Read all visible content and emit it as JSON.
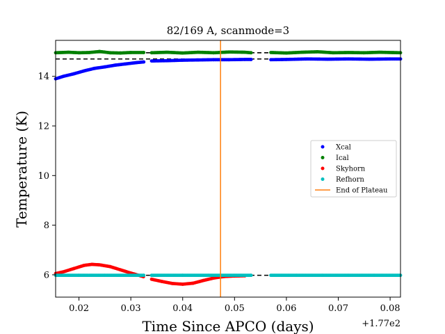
{
  "chart_data": {
    "type": "scatter",
    "title": "82/169 A, scanmode=3",
    "xlabel": "Time Since APCO (days)",
    "ylabel": "Temperature (K)",
    "x_offset_label": "+1.77e2",
    "xlim": [
      177.0155,
      177.082
    ],
    "ylim": [
      5.1,
      15.45
    ],
    "x_ticks": [
      {
        "value": 177.02,
        "label": "0.02"
      },
      {
        "value": 177.03,
        "label": "0.03"
      },
      {
        "value": 177.04,
        "label": "0.04"
      },
      {
        "value": 177.05,
        "label": "0.05"
      },
      {
        "value": 177.06,
        "label": "0.06"
      },
      {
        "value": 177.07,
        "label": "0.07"
      },
      {
        "value": 177.08,
        "label": "0.08"
      }
    ],
    "y_ticks": [
      {
        "value": 6,
        "label": "6"
      },
      {
        "value": 8,
        "label": "8"
      },
      {
        "value": 10,
        "label": "10"
      },
      {
        "value": 12,
        "label": "12"
      },
      {
        "value": 14,
        "label": "14"
      }
    ],
    "grid": false,
    "legend_position": "center-right",
    "reference_lines": [
      {
        "value": 14.95,
        "color": "#000000"
      },
      {
        "value": 14.7,
        "color": "#000000"
      },
      {
        "value": 5.98,
        "color": "#000000"
      }
    ],
    "vertical_line": {
      "name": "End of Plateau",
      "x": 177.0473,
      "color": "#ff7f0e"
    },
    "series": [
      {
        "name": "Xcal",
        "color": "#0000ff",
        "points": [
          [
            177.0155,
            13.9
          ],
          [
            177.017,
            14.0
          ],
          [
            177.019,
            14.1
          ],
          [
            177.021,
            14.22
          ],
          [
            177.023,
            14.32
          ],
          [
            177.025,
            14.38
          ],
          [
            177.027,
            14.45
          ],
          [
            177.029,
            14.5
          ],
          [
            177.031,
            14.55
          ],
          [
            177.0325,
            14.58
          ],
          [
            177.034,
            14.62
          ],
          [
            177.037,
            14.63
          ],
          [
            177.04,
            14.65
          ],
          [
            177.043,
            14.66
          ],
          [
            177.046,
            14.67
          ],
          [
            177.049,
            14.67
          ],
          [
            177.052,
            14.68
          ],
          [
            177.0532,
            14.68
          ],
          [
            177.057,
            14.67
          ],
          [
            177.06,
            14.68
          ],
          [
            177.064,
            14.7
          ],
          [
            177.068,
            14.69
          ],
          [
            177.072,
            14.7
          ],
          [
            177.076,
            14.69
          ],
          [
            177.08,
            14.7
          ],
          [
            177.082,
            14.7
          ]
        ]
      },
      {
        "name": "Ical",
        "color": "#008000",
        "points": [
          [
            177.0155,
            14.95
          ],
          [
            177.018,
            14.97
          ],
          [
            177.02,
            14.95
          ],
          [
            177.022,
            14.96
          ],
          [
            177.024,
            15.0
          ],
          [
            177.026,
            14.95
          ],
          [
            177.028,
            14.94
          ],
          [
            177.03,
            14.96
          ],
          [
            177.0325,
            14.96
          ],
          [
            177.034,
            14.95
          ],
          [
            177.037,
            14.97
          ],
          [
            177.04,
            14.94
          ],
          [
            177.043,
            14.97
          ],
          [
            177.046,
            14.95
          ],
          [
            177.049,
            14.98
          ],
          [
            177.052,
            14.97
          ],
          [
            177.0532,
            14.95
          ],
          [
            177.057,
            14.96
          ],
          [
            177.06,
            14.94
          ],
          [
            177.063,
            14.97
          ],
          [
            177.066,
            14.99
          ],
          [
            177.069,
            14.95
          ],
          [
            177.072,
            14.96
          ],
          [
            177.075,
            14.95
          ],
          [
            177.078,
            14.97
          ],
          [
            177.082,
            14.95
          ]
        ]
      },
      {
        "name": "Skyhorn",
        "color": "#ff0000",
        "points": [
          [
            177.0155,
            6.05
          ],
          [
            177.017,
            6.12
          ],
          [
            177.019,
            6.25
          ],
          [
            177.021,
            6.38
          ],
          [
            177.0225,
            6.42
          ],
          [
            177.024,
            6.4
          ],
          [
            177.026,
            6.33
          ],
          [
            177.028,
            6.2
          ],
          [
            177.03,
            6.07
          ],
          [
            177.032,
            5.95
          ],
          [
            177.034,
            5.82
          ],
          [
            177.036,
            5.73
          ],
          [
            177.038,
            5.65
          ],
          [
            177.04,
            5.62
          ],
          [
            177.042,
            5.66
          ],
          [
            177.044,
            5.77
          ],
          [
            177.046,
            5.87
          ],
          [
            177.048,
            5.93
          ],
          [
            177.05,
            5.95
          ],
          [
            177.052,
            5.96
          ]
        ]
      },
      {
        "name": "Refhorn",
        "color": "#00bfbf",
        "points": [
          [
            177.0155,
            5.98
          ],
          [
            177.02,
            5.98
          ],
          [
            177.025,
            5.98
          ],
          [
            177.03,
            5.98
          ],
          [
            177.0325,
            5.98
          ],
          [
            177.034,
            5.98
          ],
          [
            177.04,
            5.98
          ],
          [
            177.045,
            5.98
          ],
          [
            177.05,
            5.98
          ],
          [
            177.0532,
            5.98
          ],
          [
            177.057,
            5.98
          ],
          [
            177.062,
            5.98
          ],
          [
            177.067,
            5.98
          ],
          [
            177.072,
            5.98
          ],
          [
            177.077,
            5.98
          ],
          [
            177.082,
            5.98
          ]
        ]
      }
    ],
    "gaps": [
      [
        177.0325,
        177.034
      ],
      [
        177.0532,
        177.057
      ]
    ]
  }
}
